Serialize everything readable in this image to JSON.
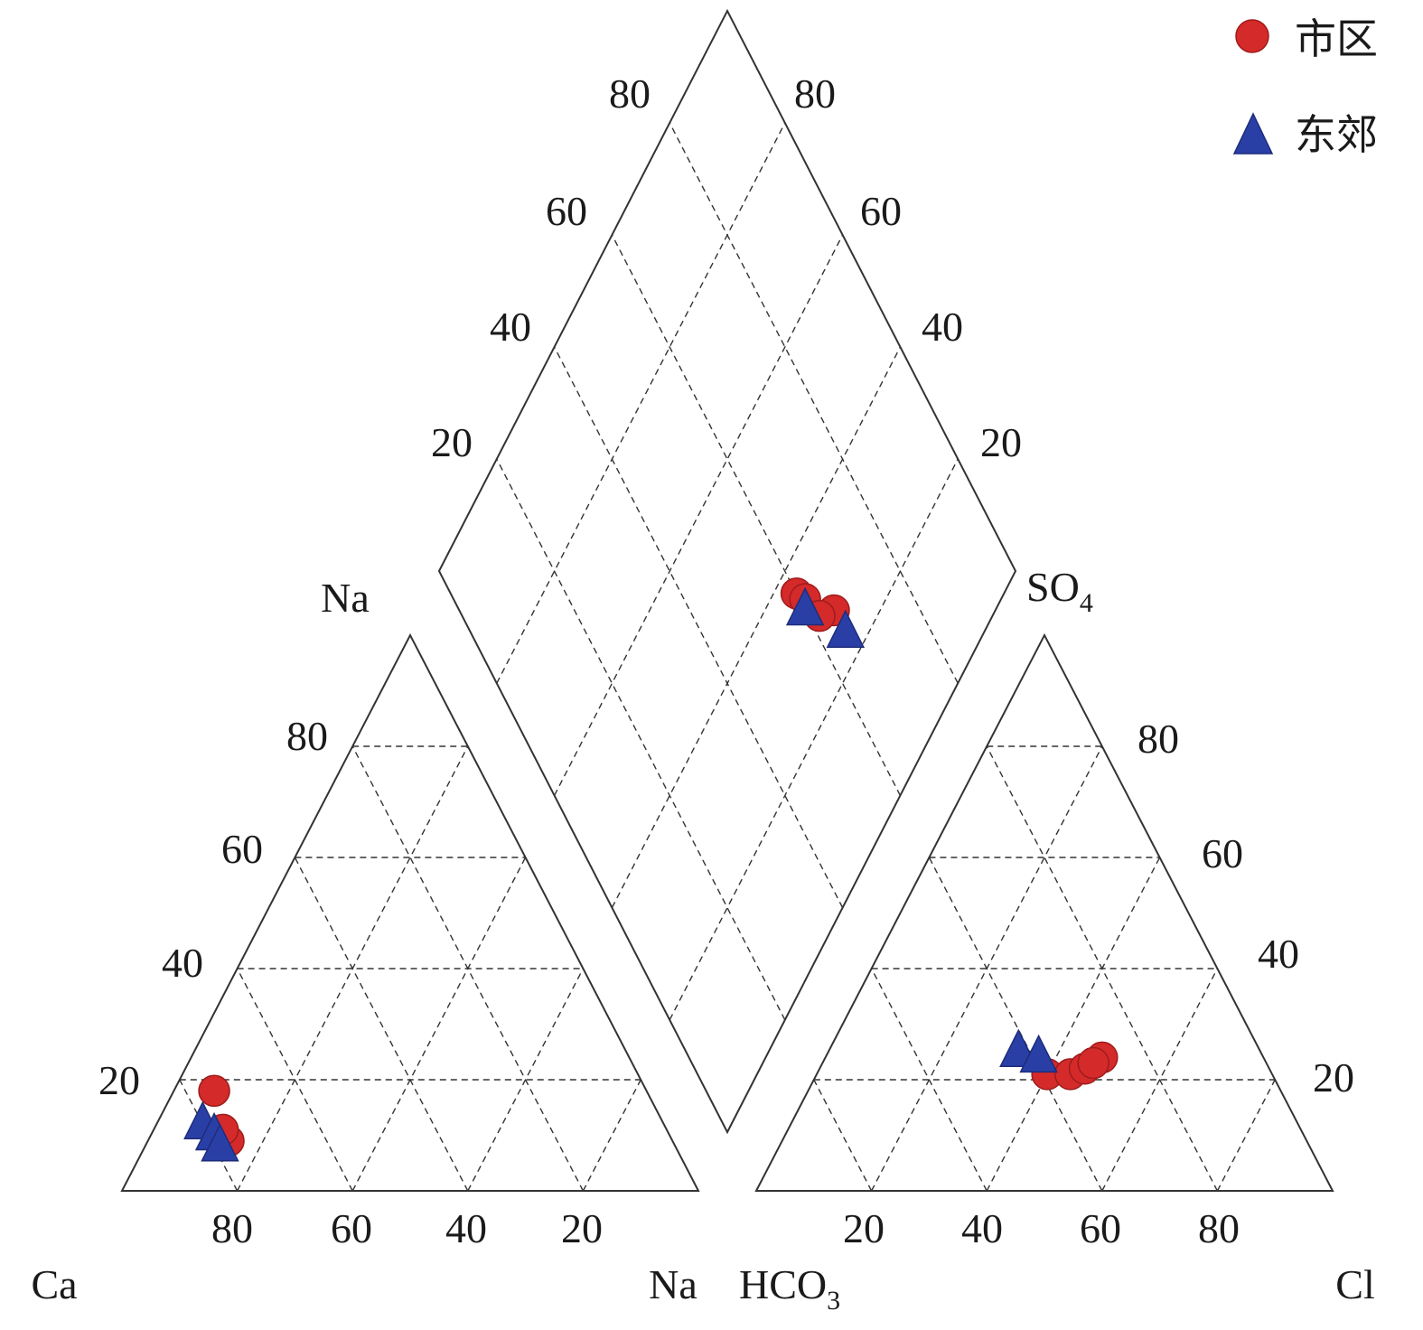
{
  "chart_data": {
    "type": "scatter",
    "subtype": "piper-diagram",
    "grid": true,
    "legend_position": "top-right",
    "legend": [
      {
        "label": "市区",
        "marker": "circle",
        "color": "#d42a2a"
      },
      {
        "label": "东郊",
        "marker": "triangle",
        "color": "#2a3fa6"
      }
    ],
    "cation_triangle": {
      "labels": {
        "Ca": "Ca",
        "Na_corner": "Na",
        "Na_apex": "Na"
      },
      "bottom_ticks": [
        "80",
        "60",
        "40",
        "20"
      ],
      "left_ticks": [
        "20",
        "40",
        "60",
        "80"
      ]
    },
    "anion_triangle": {
      "labels": {
        "HCO3": "HCO",
        "HCO3_sub": "3",
        "Cl": "Cl",
        "SO4": "SO",
        "SO4_sub": "4"
      },
      "bottom_ticks": [
        "20",
        "40",
        "60",
        "80"
      ],
      "right_ticks": [
        "20",
        "40",
        "60",
        "80"
      ]
    },
    "diamond": {
      "left_ticks": [
        "20",
        "40",
        "60",
        "80"
      ],
      "right_ticks": [
        "20",
        "40",
        "60",
        "80"
      ]
    },
    "series": [
      {
        "name": "市区",
        "marker": "circle",
        "color": "#d42a2a",
        "cation": [
          {
            "Ca": 75,
            "Na": 18
          },
          {
            "Ca": 77,
            "Na": 9
          },
          {
            "Ca": 77,
            "Na": 11
          }
        ],
        "anion": [
          {
            "Cl": 40,
            "SO4": 21
          },
          {
            "Cl": 44,
            "SO4": 21
          },
          {
            "Cl": 46,
            "SO4": 22
          },
          {
            "Cl": 48,
            "SO4": 24
          },
          {
            "Cl": 47,
            "SO4": 23
          }
        ],
        "diamond": [
          {
            "NaK": 36,
            "SO4Cl": 60
          },
          {
            "NaK": 34,
            "SO4Cl": 61
          },
          {
            "NaK": 28,
            "SO4Cl": 65
          },
          {
            "NaK": 30,
            "SO4Cl": 62
          }
        ]
      },
      {
        "name": "东郊",
        "marker": "triangle",
        "color": "#2a3fa6",
        "cation": [
          {
            "Ca": 80,
            "Na": 12
          },
          {
            "Ca": 79,
            "Na": 10
          },
          {
            "Ca": 79,
            "Na": 8
          }
        ],
        "anion": [
          {
            "Cl": 33,
            "SO4": 25
          },
          {
            "Cl": 37,
            "SO4": 24
          }
        ],
        "diamond": [
          {
            "NaK": 33,
            "SO4Cl": 60
          },
          {
            "NaK": 24,
            "SO4Cl": 65
          }
        ]
      }
    ]
  }
}
